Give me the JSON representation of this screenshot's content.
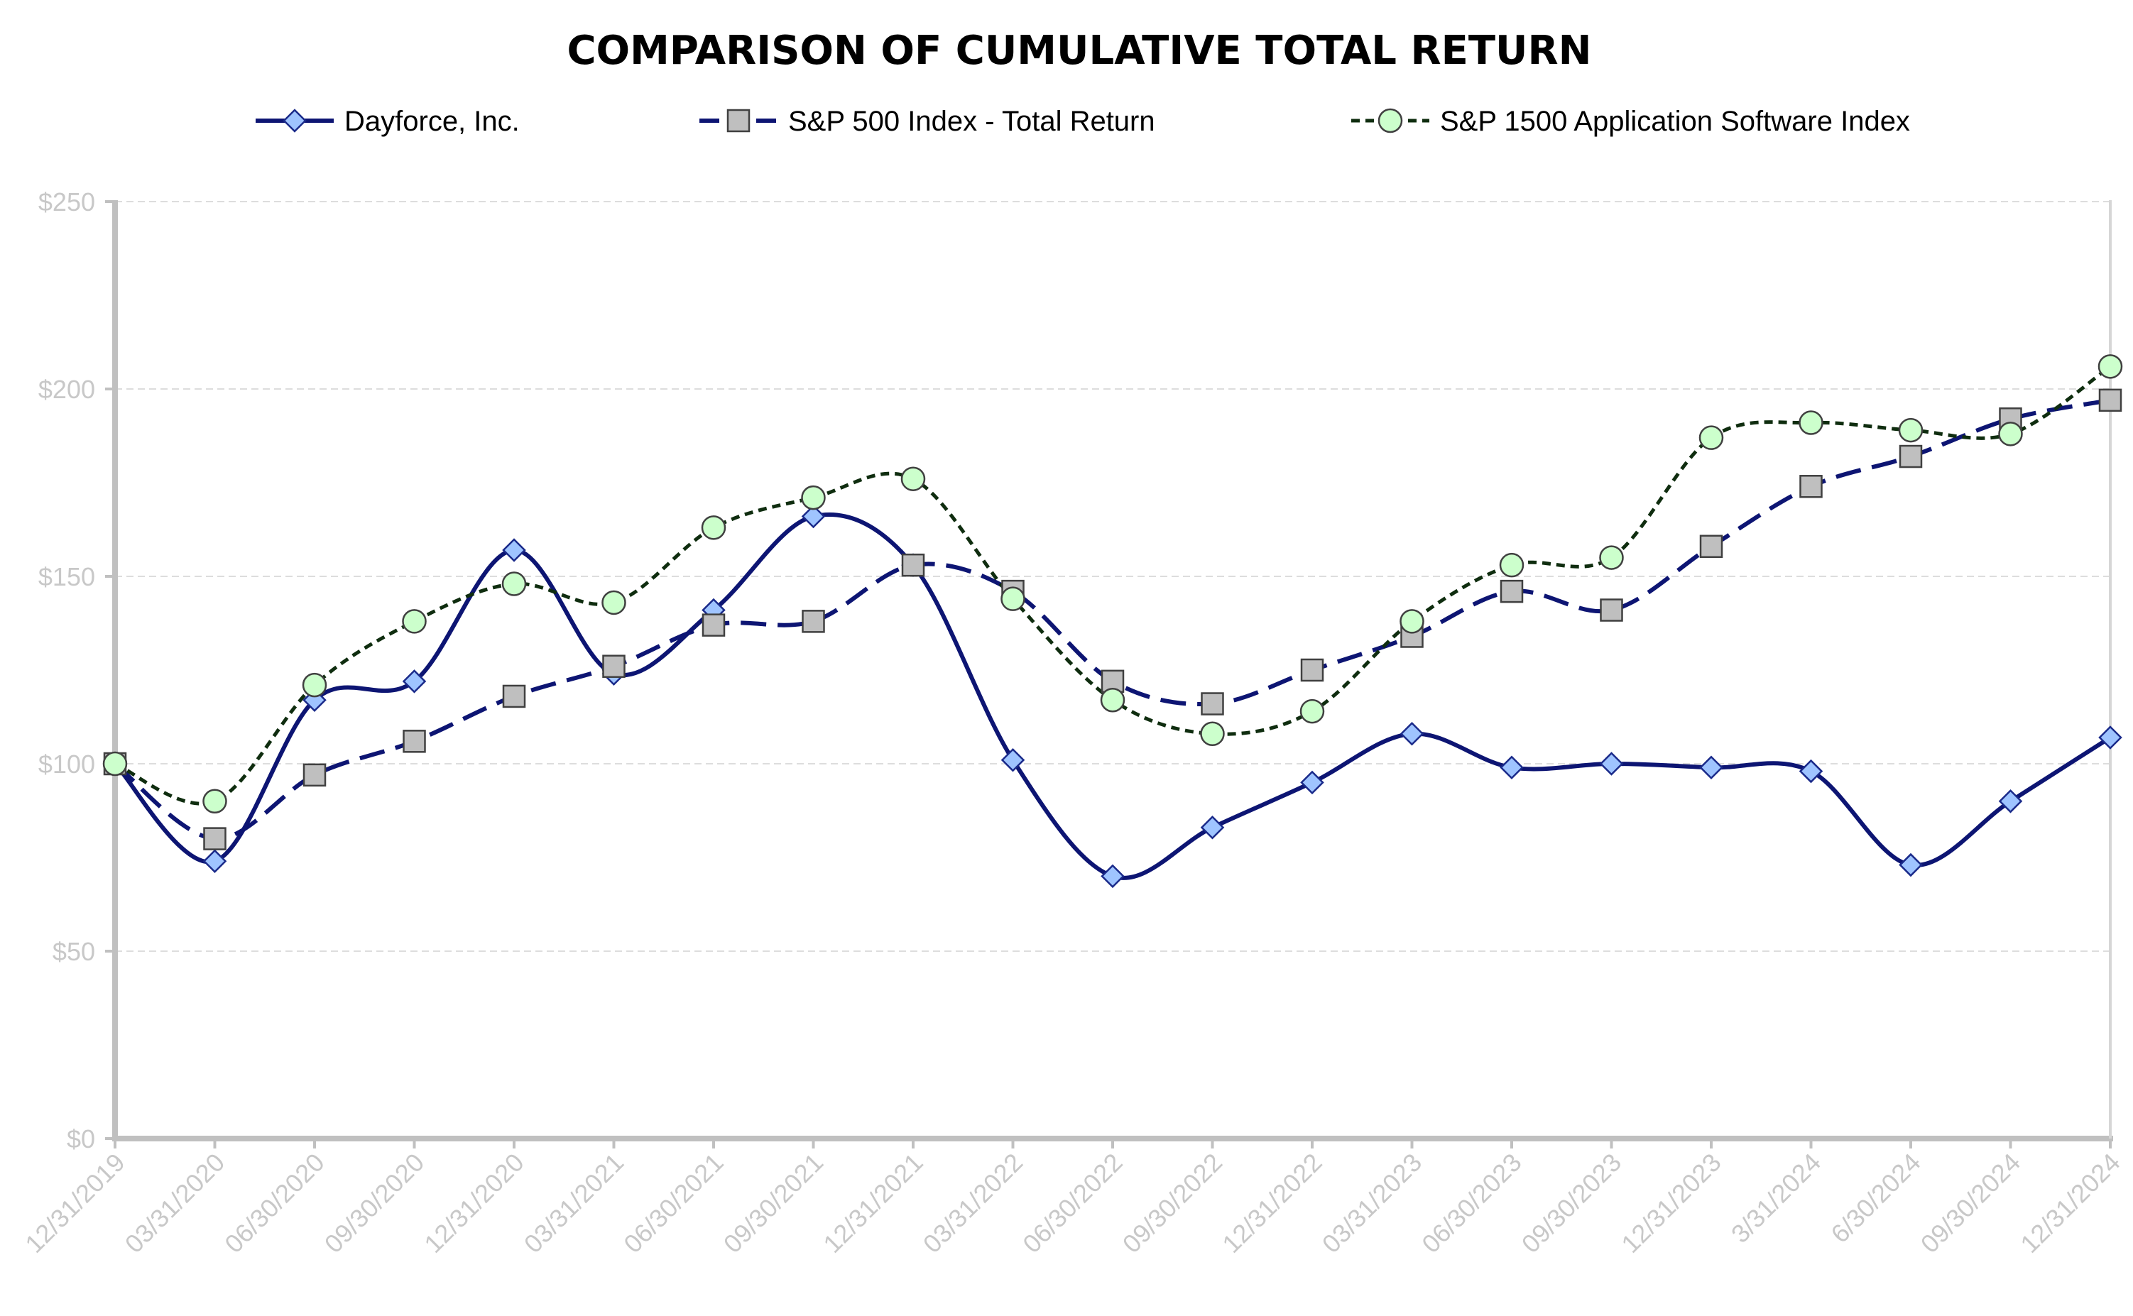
{
  "chart_data": {
    "type": "line",
    "title": "COMPARISON OF CUMULATIVE TOTAL RETURN",
    "xlabel": "",
    "ylabel": "",
    "ylim": [
      0,
      250
    ],
    "y_ticks": [
      0,
      50,
      100,
      150,
      200,
      250
    ],
    "y_tick_labels": [
      "$0",
      "$50",
      "$100",
      "$150",
      "$200",
      "$250"
    ],
    "grid": true,
    "legend_position": "top",
    "categories": [
      "12/31/2019",
      "03/31/2020",
      "06/30/2020",
      "09/30/2020",
      "12/31/2020",
      "03/31/2021",
      "06/30/2021",
      "09/30/2021",
      "12/31/2021",
      "03/31/2022",
      "06/30/2022",
      "09/30/2022",
      "12/31/2022",
      "03/31/2023",
      "06/30/2023",
      "09/30/2023",
      "12/31/2023",
      "3/31/2024",
      "6/30/2024",
      "09/30/2024",
      "12/31/2024"
    ],
    "series": [
      {
        "name": "Dayforce, Inc.",
        "marker": "diamond",
        "line_style": "solid",
        "line_color": "#0d1573",
        "marker_color": "#9fc4ff",
        "values": [
          100,
          74,
          117,
          122,
          157,
          124,
          141,
          166,
          153,
          101,
          70,
          83,
          95,
          108,
          99,
          100,
          99,
          98,
          73,
          90,
          107
        ]
      },
      {
        "name": "S&P 500 Index - Total Return",
        "marker": "square",
        "line_style": "dashed",
        "line_color": "#0d1573",
        "marker_color": "#bfbfbf",
        "values": [
          100,
          80,
          97,
          106,
          118,
          126,
          137,
          138,
          153,
          146,
          122,
          116,
          125,
          134,
          146,
          141,
          158,
          174,
          182,
          192,
          197
        ]
      },
      {
        "name": "S&P 1500 Application Software Index",
        "marker": "circle",
        "line_style": "dotted",
        "line_color": "#0f2d0f",
        "marker_color": "#ccffcc",
        "values": [
          100,
          90,
          121,
          138,
          148,
          143,
          163,
          171,
          176,
          144,
          117,
          108,
          114,
          138,
          153,
          155,
          187,
          191,
          189,
          188,
          206
        ]
      }
    ]
  }
}
